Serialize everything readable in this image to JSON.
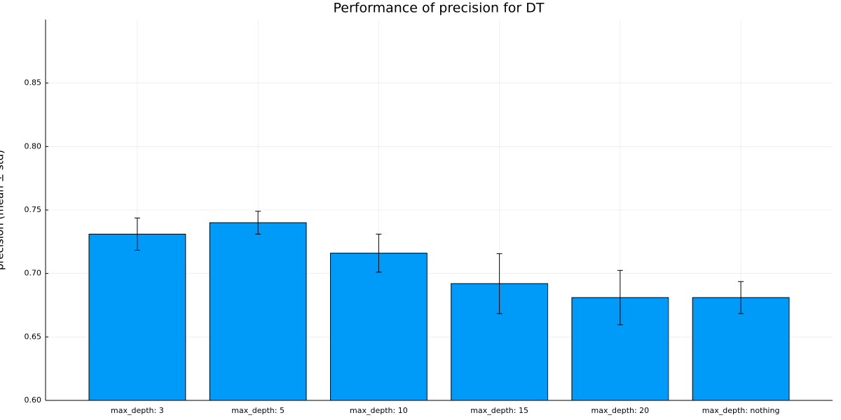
{
  "chart_data": {
    "type": "bar",
    "title": "Performance of precision for DT",
    "y_label": "precision (mean ± std)",
    "categories": [
      "max_depth: 3",
      "max_depth: 5",
      "max_depth: 10",
      "max_depth: 15",
      "max_depth: 20",
      "max_depth: nothing"
    ],
    "values": [
      0.731,
      0.74,
      0.716,
      0.692,
      0.681,
      0.681
    ],
    "errors": [
      0.0127,
      0.009,
      0.015,
      0.0236,
      0.0214,
      0.0126
    ],
    "color": "#009af9",
    "ylim": [
      0.6,
      0.9
    ],
    "yticks": [
      0.6,
      0.65,
      0.7,
      0.75,
      0.8,
      0.85
    ],
    "ytick_labels": [
      "0.60",
      "0.65",
      "0.70",
      "0.75",
      "0.80",
      "0.85"
    ],
    "grid": true
  }
}
